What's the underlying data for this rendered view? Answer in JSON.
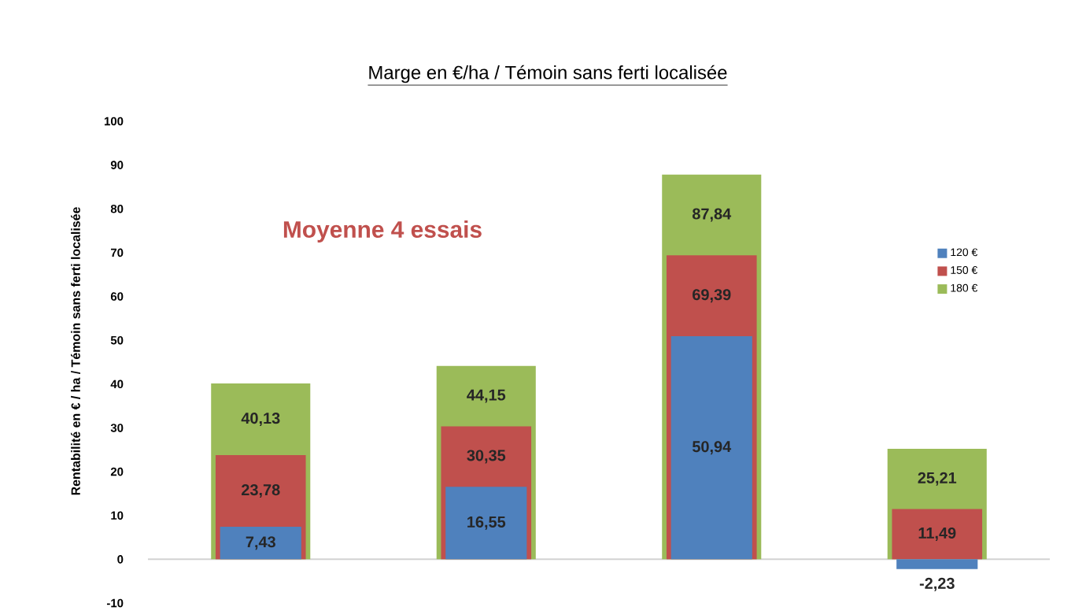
{
  "chart_data": {
    "type": "bar",
    "title": "Marge en €/ha / Témoin sans ferti localisée",
    "ylabel": "Rentabilité en € / ha / Témoin sans ferti localisée",
    "annotations": [
      "Moyenne 4 essais"
    ],
    "categories": [
      null,
      null,
      null,
      null
    ],
    "series": [
      {
        "name": "120 €",
        "color": "#4f81bd",
        "values": [
          7.43,
          16.55,
          50.94,
          -2.23
        ],
        "value_labels": [
          "7,43",
          "16,55",
          "50,94",
          "-2,23"
        ]
      },
      {
        "name": "150 €",
        "color": "#c0504d",
        "values": [
          23.78,
          30.35,
          69.39,
          11.49
        ],
        "value_labels": [
          "23,78",
          "30,35",
          "69,39",
          "11,49"
        ]
      },
      {
        "name": "180 €",
        "color": "#9bbb59",
        "values": [
          40.13,
          44.15,
          87.84,
          25.21
        ],
        "value_labels": [
          "40,13",
          "44,15",
          "87,84",
          "25,21"
        ]
      }
    ],
    "ylim": [
      -10,
      100
    ],
    "yticks": [
      -10,
      0,
      10,
      20,
      30,
      40,
      50,
      60,
      70,
      80,
      90,
      100
    ],
    "legend": "right"
  }
}
